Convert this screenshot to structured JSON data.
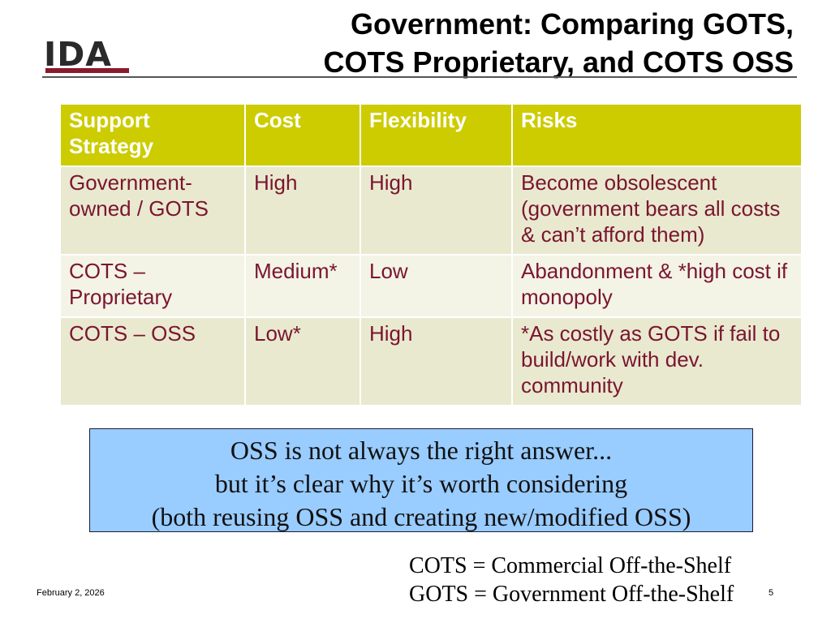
{
  "logo": {
    "text": "IDA",
    "bar_color": "#8b1a2b"
  },
  "title": {
    "line1": "Government: Comparing GOTS,",
    "line2": "COTS Proprietary, and COTS OSS"
  },
  "table": {
    "header_color": "#cccc00",
    "body_text_color": "#7a1530",
    "headers": [
      "Support Strategy",
      "Cost",
      "Flexibility",
      "Risks"
    ],
    "rows": [
      [
        "Government-owned / GOTS",
        "High",
        "High",
        "Become obsolescent (government bears all costs & can’t afford them)"
      ],
      [
        "COTS – Proprietary",
        "Medium*",
        "Low",
        "Abandonment & *high cost if monopoly"
      ],
      [
        "COTS – OSS",
        "Low*",
        "High",
        "*As costly as GOTS if fail to build/work with dev. community"
      ]
    ]
  },
  "callout": {
    "background": "#99ccff",
    "line1": "OSS is not always the right answer...",
    "line2": "but it’s clear why it’s worth considering",
    "line3": "(both reusing OSS and creating new/modified OSS)"
  },
  "definitions": {
    "cots": "COTS = Commercial Off-the-Shelf",
    "gots": "GOTS = Government Off-the-Shelf"
  },
  "footer": {
    "date": "February 2, 2026",
    "page": "5"
  }
}
